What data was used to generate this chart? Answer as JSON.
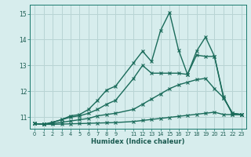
{
  "title": "",
  "xlabel": "Humidex (Indice chaleur)",
  "xlim": [
    -0.5,
    23.5
  ],
  "ylim": [
    10.55,
    15.35
  ],
  "background_color": "#d7eded",
  "grid_color": "#b8d4d4",
  "line_color_dark": "#1a6b5a",
  "line_color_medium": "#1a8070",
  "xtick_labels": [
    "0",
    "1",
    "2",
    "3",
    "4",
    "5",
    "6",
    "7",
    "8",
    "9",
    "",
    "11",
    "12",
    "13",
    "14",
    "15",
    "16",
    "17",
    "18",
    "19",
    "20",
    "21",
    "22",
    "23"
  ],
  "ytick_vals": [
    11,
    12,
    13,
    14,
    15
  ],
  "lines": [
    {
      "x": [
        0,
        1,
        2,
        3,
        4,
        5,
        6,
        7,
        8,
        9,
        11,
        12,
        13,
        14,
        15,
        16,
        17,
        18,
        19,
        20,
        21,
        22,
        23
      ],
      "y": [
        10.75,
        10.72,
        10.72,
        10.73,
        10.74,
        10.75,
        10.76,
        10.77,
        10.78,
        10.79,
        10.83,
        10.87,
        10.91,
        10.95,
        10.99,
        11.03,
        11.07,
        11.11,
        11.15,
        11.19,
        11.1,
        11.1,
        11.1
      ],
      "lw": 1.0
    },
    {
      "x": [
        0,
        1,
        2,
        3,
        4,
        5,
        6,
        7,
        8,
        9,
        11,
        12,
        13,
        14,
        15,
        16,
        17,
        18,
        19,
        20,
        21,
        22,
        23
      ],
      "y": [
        10.75,
        10.72,
        10.75,
        10.8,
        10.85,
        10.9,
        10.95,
        11.05,
        11.1,
        11.15,
        11.3,
        11.5,
        11.7,
        11.9,
        12.1,
        12.25,
        12.35,
        12.45,
        12.5,
        12.1,
        11.75,
        11.15,
        11.1
      ],
      "lw": 1.0
    },
    {
      "x": [
        0,
        1,
        2,
        3,
        4,
        5,
        6,
        7,
        8,
        9,
        11,
        12,
        13,
        14,
        15,
        16,
        17,
        18,
        19,
        20,
        21,
        22,
        23
      ],
      "y": [
        10.75,
        10.72,
        10.8,
        10.9,
        11.0,
        11.05,
        11.15,
        11.3,
        11.5,
        11.65,
        12.5,
        13.0,
        12.7,
        12.7,
        12.7,
        12.7,
        12.65,
        13.4,
        13.35,
        13.35,
        11.8,
        11.1,
        11.1
      ],
      "lw": 1.0
    },
    {
      "x": [
        0,
        1,
        2,
        3,
        4,
        5,
        6,
        7,
        8,
        9,
        11,
        12,
        13,
        14,
        15,
        16,
        17,
        18,
        19,
        20,
        21,
        22,
        23
      ],
      "y": [
        10.75,
        10.72,
        10.8,
        10.9,
        11.05,
        11.1,
        11.3,
        11.65,
        12.05,
        12.2,
        13.1,
        13.55,
        13.15,
        14.35,
        15.05,
        13.6,
        12.65,
        13.55,
        14.1,
        13.35,
        11.75,
        11.15,
        11.1
      ],
      "lw": 1.0
    }
  ]
}
